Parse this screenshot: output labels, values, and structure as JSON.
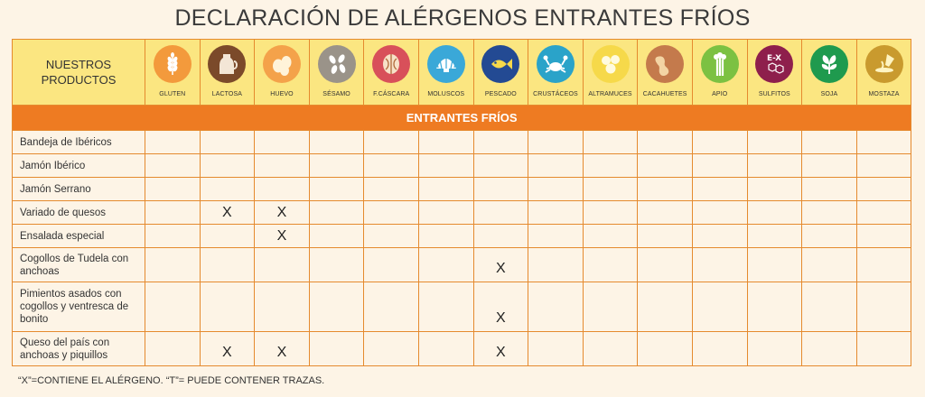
{
  "title": "DECLARACIÓN DE ALÉRGENOS ENTRANTES FRÍOS",
  "header": {
    "products_label": "NUESTROS PRODUCTOS"
  },
  "allergens": [
    {
      "label": "GLUTEN",
      "icon": "wheat-icon",
      "color": "#f39a3c"
    },
    {
      "label": "LACTOSA",
      "icon": "milk-jug-icon",
      "color": "#7b4a2a"
    },
    {
      "label": "HUEVO",
      "icon": "eggs-icon",
      "color": "#f4a24a"
    },
    {
      "label": "SÉSAMO",
      "icon": "sesame-icon",
      "color": "#9a9389"
    },
    {
      "label": "F.CÁSCARA",
      "icon": "walnut-icon",
      "color": "#d8505a"
    },
    {
      "label": "MOLUSCOS",
      "icon": "shell-icon",
      "color": "#3aa8d8"
    },
    {
      "label": "PESCADO",
      "icon": "fish-icon",
      "color": "#234a93"
    },
    {
      "label": "CRUSTÁCEOS",
      "icon": "crab-icon",
      "color": "#2aa3c9"
    },
    {
      "label": "ALTRAMUCES",
      "icon": "lupin-icon",
      "color": "#f6d94a"
    },
    {
      "label": "CACAHUETES",
      "icon": "peanut-icon",
      "color": "#c47a4c"
    },
    {
      "label": "APIO",
      "icon": "celery-icon",
      "color": "#7cc142"
    },
    {
      "label": "SULFITOS",
      "icon": "sulfite-icon",
      "color": "#8e1f4c"
    },
    {
      "label": "SOJA",
      "icon": "soy-icon",
      "color": "#1f9a4e"
    },
    {
      "label": "MOSTAZA",
      "icon": "mustard-icon",
      "color": "#c99a2e"
    }
  ],
  "section_title": "ENTRANTES FRÍOS",
  "products": [
    {
      "name": "Bandeja de Ibéricos",
      "marks": [
        "",
        "",
        "",
        "",
        "",
        "",
        "",
        "",
        "",
        "",
        "",
        "",
        "",
        ""
      ]
    },
    {
      "name": "Jamón Ibérico",
      "marks": [
        "",
        "",
        "",
        "",
        "",
        "",
        "",
        "",
        "",
        "",
        "",
        "",
        "",
        ""
      ]
    },
    {
      "name": "Jamón Serrano",
      "marks": [
        "",
        "",
        "",
        "",
        "",
        "",
        "",
        "",
        "",
        "",
        "",
        "",
        "",
        ""
      ]
    },
    {
      "name": "Variado de quesos",
      "marks": [
        "",
        "X",
        "X",
        "",
        "",
        "",
        "",
        "",
        "",
        "",
        "",
        "",
        "",
        ""
      ]
    },
    {
      "name": "Ensalada especial",
      "marks": [
        "",
        "",
        "X",
        "",
        "",
        "",
        "",
        "",
        "",
        "",
        "",
        "",
        "",
        ""
      ]
    },
    {
      "name": "Cogollos de Tudela con anchoas",
      "marks": [
        "",
        "",
        "",
        "",
        "",
        "",
        "X",
        "",
        "",
        "",
        "",
        "",
        "",
        ""
      ]
    },
    {
      "name": "Pimientos asados con cogollos y ventresca de bonito",
      "marks": [
        "",
        "",
        "",
        "",
        "",
        "",
        "X",
        "",
        "",
        "",
        "",
        "",
        "",
        ""
      ]
    },
    {
      "name": "Queso del país con anchoas y piquillos",
      "marks": [
        "",
        "X",
        "X",
        "",
        "",
        "",
        "X",
        "",
        "",
        "",
        "",
        "",
        "",
        ""
      ]
    }
  ],
  "footnote": "“X”=CONTIENE EL ALÉRGENO. “T”= PUEDE CONTENER TRAZAS."
}
